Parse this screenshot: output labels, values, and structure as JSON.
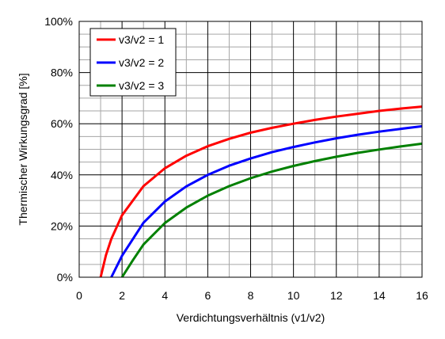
{
  "chart_data": {
    "type": "line",
    "title": "",
    "xlabel": "Verdichtungsverhältnis (v1/v2)",
    "ylabel": "Thermischer Wirkungsgrad [%]",
    "xlim": [
      0,
      16
    ],
    "ylim": [
      0,
      100
    ],
    "x_ticks": [
      0,
      2,
      4,
      6,
      8,
      10,
      12,
      14,
      16
    ],
    "x_tick_labels": [
      "0",
      "2",
      "4",
      "6",
      "8",
      "10",
      "12",
      "14",
      "16"
    ],
    "y_ticks": [
      0,
      20,
      40,
      60,
      80,
      100
    ],
    "y_tick_labels": [
      "0%",
      "20%",
      "40%",
      "60%",
      "80%",
      "100%"
    ],
    "grid": "major and minor",
    "legend_position": "top-left",
    "series": [
      {
        "name": "v3/v2 = 1",
        "color": "#ff0000",
        "points": [
          [
            1,
            0
          ],
          [
            1.25,
            8.6
          ],
          [
            1.5,
            15.0
          ],
          [
            2,
            24.2
          ],
          [
            3,
            35.6
          ],
          [
            4,
            42.6
          ],
          [
            5,
            47.5
          ],
          [
            6,
            51.2
          ],
          [
            7,
            54.1
          ],
          [
            8,
            56.5
          ],
          [
            9,
            58.4
          ],
          [
            10,
            60.0
          ],
          [
            11,
            61.5
          ],
          [
            12,
            62.8
          ],
          [
            13,
            63.9
          ],
          [
            14,
            65.0
          ],
          [
            15,
            65.9
          ],
          [
            16,
            66.7
          ]
        ]
      },
      {
        "name": "v3/v2 = 2",
        "color": "#0000ff",
        "points": [
          [
            1.5,
            0
          ],
          [
            2,
            8.4
          ],
          [
            3,
            21.3
          ],
          [
            4,
            29.6
          ],
          [
            5,
            35.5
          ],
          [
            6,
            40.0
          ],
          [
            7,
            43.6
          ],
          [
            8,
            46.4
          ],
          [
            9,
            48.9
          ],
          [
            10,
            50.9
          ],
          [
            11,
            52.7
          ],
          [
            12,
            54.3
          ],
          [
            13,
            55.7
          ],
          [
            14,
            56.9
          ],
          [
            15,
            58.0
          ],
          [
            16,
            59.0
          ]
        ]
      },
      {
        "name": "v3/v2 = 3",
        "color": "#008000",
        "points": [
          [
            2,
            0
          ],
          [
            2.5,
            6.6
          ],
          [
            3,
            12.8
          ],
          [
            4,
            21.2
          ],
          [
            5,
            27.2
          ],
          [
            6,
            31.9
          ],
          [
            7,
            35.6
          ],
          [
            8,
            38.7
          ],
          [
            9,
            41.3
          ],
          [
            10,
            43.5
          ],
          [
            11,
            45.4
          ],
          [
            12,
            47.1
          ],
          [
            13,
            48.6
          ],
          [
            14,
            49.9
          ],
          [
            15,
            51.1
          ],
          [
            16,
            52.2
          ]
        ]
      }
    ]
  }
}
